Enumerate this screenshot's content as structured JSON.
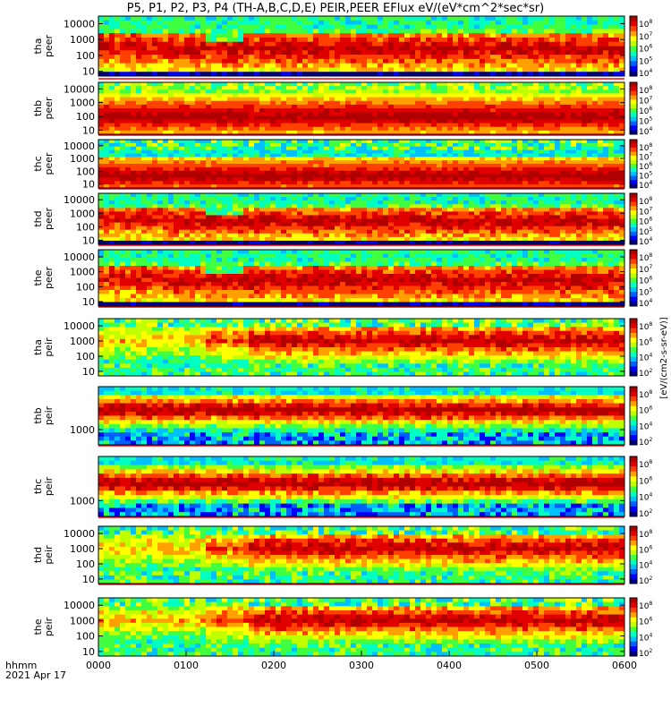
{
  "title": "P5, P1, P2, P3, P4 (TH-A,B,C,D,E) PEIR,PEER EFlux eV/(eV*cm^2*sec*sr)",
  "colors": {
    "background": "#ffffff",
    "frame": "#000000",
    "colormap": [
      "#000080",
      "#0000ff",
      "#0060ff",
      "#00c0ff",
      "#00ffc0",
      "#40ff40",
      "#c0ff00",
      "#ffff00",
      "#ffa000",
      "#ff4000",
      "#e00000",
      "#b00000"
    ]
  },
  "x_axis": {
    "type": "time",
    "range": [
      "0000",
      "0600"
    ],
    "tick_labels": [
      "0000",
      "0100",
      "0200",
      "0300",
      "0400",
      "0500",
      "0600"
    ],
    "label_top": "hhmm",
    "label_bottom": "2021 Apr 17"
  },
  "colorbar_ticks_peer": [
    "10^8",
    "10^7",
    "10^6",
    "10^5",
    "10^4"
  ],
  "colorbar_ticks_peir": [
    "10^8",
    "10^6",
    "10^4",
    "10^2"
  ],
  "colorbar_label": "eV/(cm^2-s-sr-eV)",
  "colorbar_label_bottom": "[eV/(cm2-s-sr-eV)]",
  "chart_data": [
    {
      "type": "heatmap",
      "probe": "tha",
      "instrument": "peer",
      "ylabel": [
        "tha",
        "peer"
      ],
      "y_scale": "log",
      "y_tick_labels": [
        "10000",
        "1000",
        "100",
        "10"
      ],
      "ylim": [
        5,
        30000
      ],
      "dominant": "red/orange at 100-3000 eV; green-blue above 5000 eV"
    },
    {
      "type": "heatmap",
      "probe": "thb",
      "instrument": "peer",
      "ylabel": [
        "thb",
        "peer"
      ],
      "y_scale": "log",
      "y_tick_labels": [
        "10000",
        "1000",
        "100",
        "10"
      ],
      "ylim": [
        5,
        30000
      ],
      "dominant": "uniform red band 10-300 eV"
    },
    {
      "type": "heatmap",
      "probe": "thc",
      "instrument": "peer",
      "ylabel": [
        "thc",
        "peer"
      ],
      "y_scale": "log",
      "y_tick_labels": [
        "10000",
        "1000",
        "100",
        "10"
      ],
      "ylim": [
        5,
        30000
      ],
      "dominant": "uniform red band 10-100 eV"
    },
    {
      "type": "heatmap",
      "probe": "thd",
      "instrument": "peer",
      "ylabel": [
        "thd",
        "peer"
      ],
      "y_scale": "log",
      "y_tick_labels": [
        "10000",
        "1000",
        "100",
        "10"
      ],
      "ylim": [
        5,
        30000
      ],
      "dominant": "red/orange at 100-3000 eV"
    },
    {
      "type": "heatmap",
      "probe": "the",
      "instrument": "peer",
      "ylabel": [
        "the",
        "peer"
      ],
      "y_scale": "log",
      "y_tick_labels": [
        "10000",
        "1000",
        "100",
        "10"
      ],
      "ylim": [
        5,
        30000
      ],
      "dominant": "red/orange at 100-3000 eV"
    },
    {
      "type": "heatmap",
      "probe": "tha",
      "instrument": "peir",
      "ylabel": [
        "tha",
        "peir"
      ],
      "y_scale": "log",
      "y_tick_labels": [
        "10000",
        "1000",
        "100",
        "10"
      ],
      "ylim": [
        5,
        30000
      ],
      "dominant": "orange-red 500-10000 eV"
    },
    {
      "type": "heatmap",
      "probe": "thb",
      "instrument": "peir",
      "ylabel": [
        "thb",
        "peir"
      ],
      "y_scale": "log",
      "y_tick_labels": [
        "1000"
      ],
      "ylim": [
        300,
        30000
      ],
      "dominant": "red band near 3000 eV"
    },
    {
      "type": "heatmap",
      "probe": "thc",
      "instrument": "peir",
      "ylabel": [
        "thc",
        "peir"
      ],
      "y_scale": "log",
      "y_tick_labels": [
        "1000"
      ],
      "ylim": [
        300,
        30000
      ],
      "dominant": "red band near 2000 eV"
    },
    {
      "type": "heatmap",
      "probe": "thd",
      "instrument": "peir",
      "ylabel": [
        "thd",
        "peir"
      ],
      "y_scale": "log",
      "y_tick_labels": [
        "10000",
        "1000",
        "100",
        "10"
      ],
      "ylim": [
        5,
        30000
      ],
      "dominant": "red 300-5000 eV after 0130"
    },
    {
      "type": "heatmap",
      "probe": "the",
      "instrument": "peir",
      "ylabel": [
        "the",
        "peir"
      ],
      "y_scale": "log",
      "y_tick_labels": [
        "10000",
        "1000",
        "100",
        "10"
      ],
      "ylim": [
        5,
        30000
      ],
      "dominant": "red 300-5000 eV after 0130"
    }
  ]
}
